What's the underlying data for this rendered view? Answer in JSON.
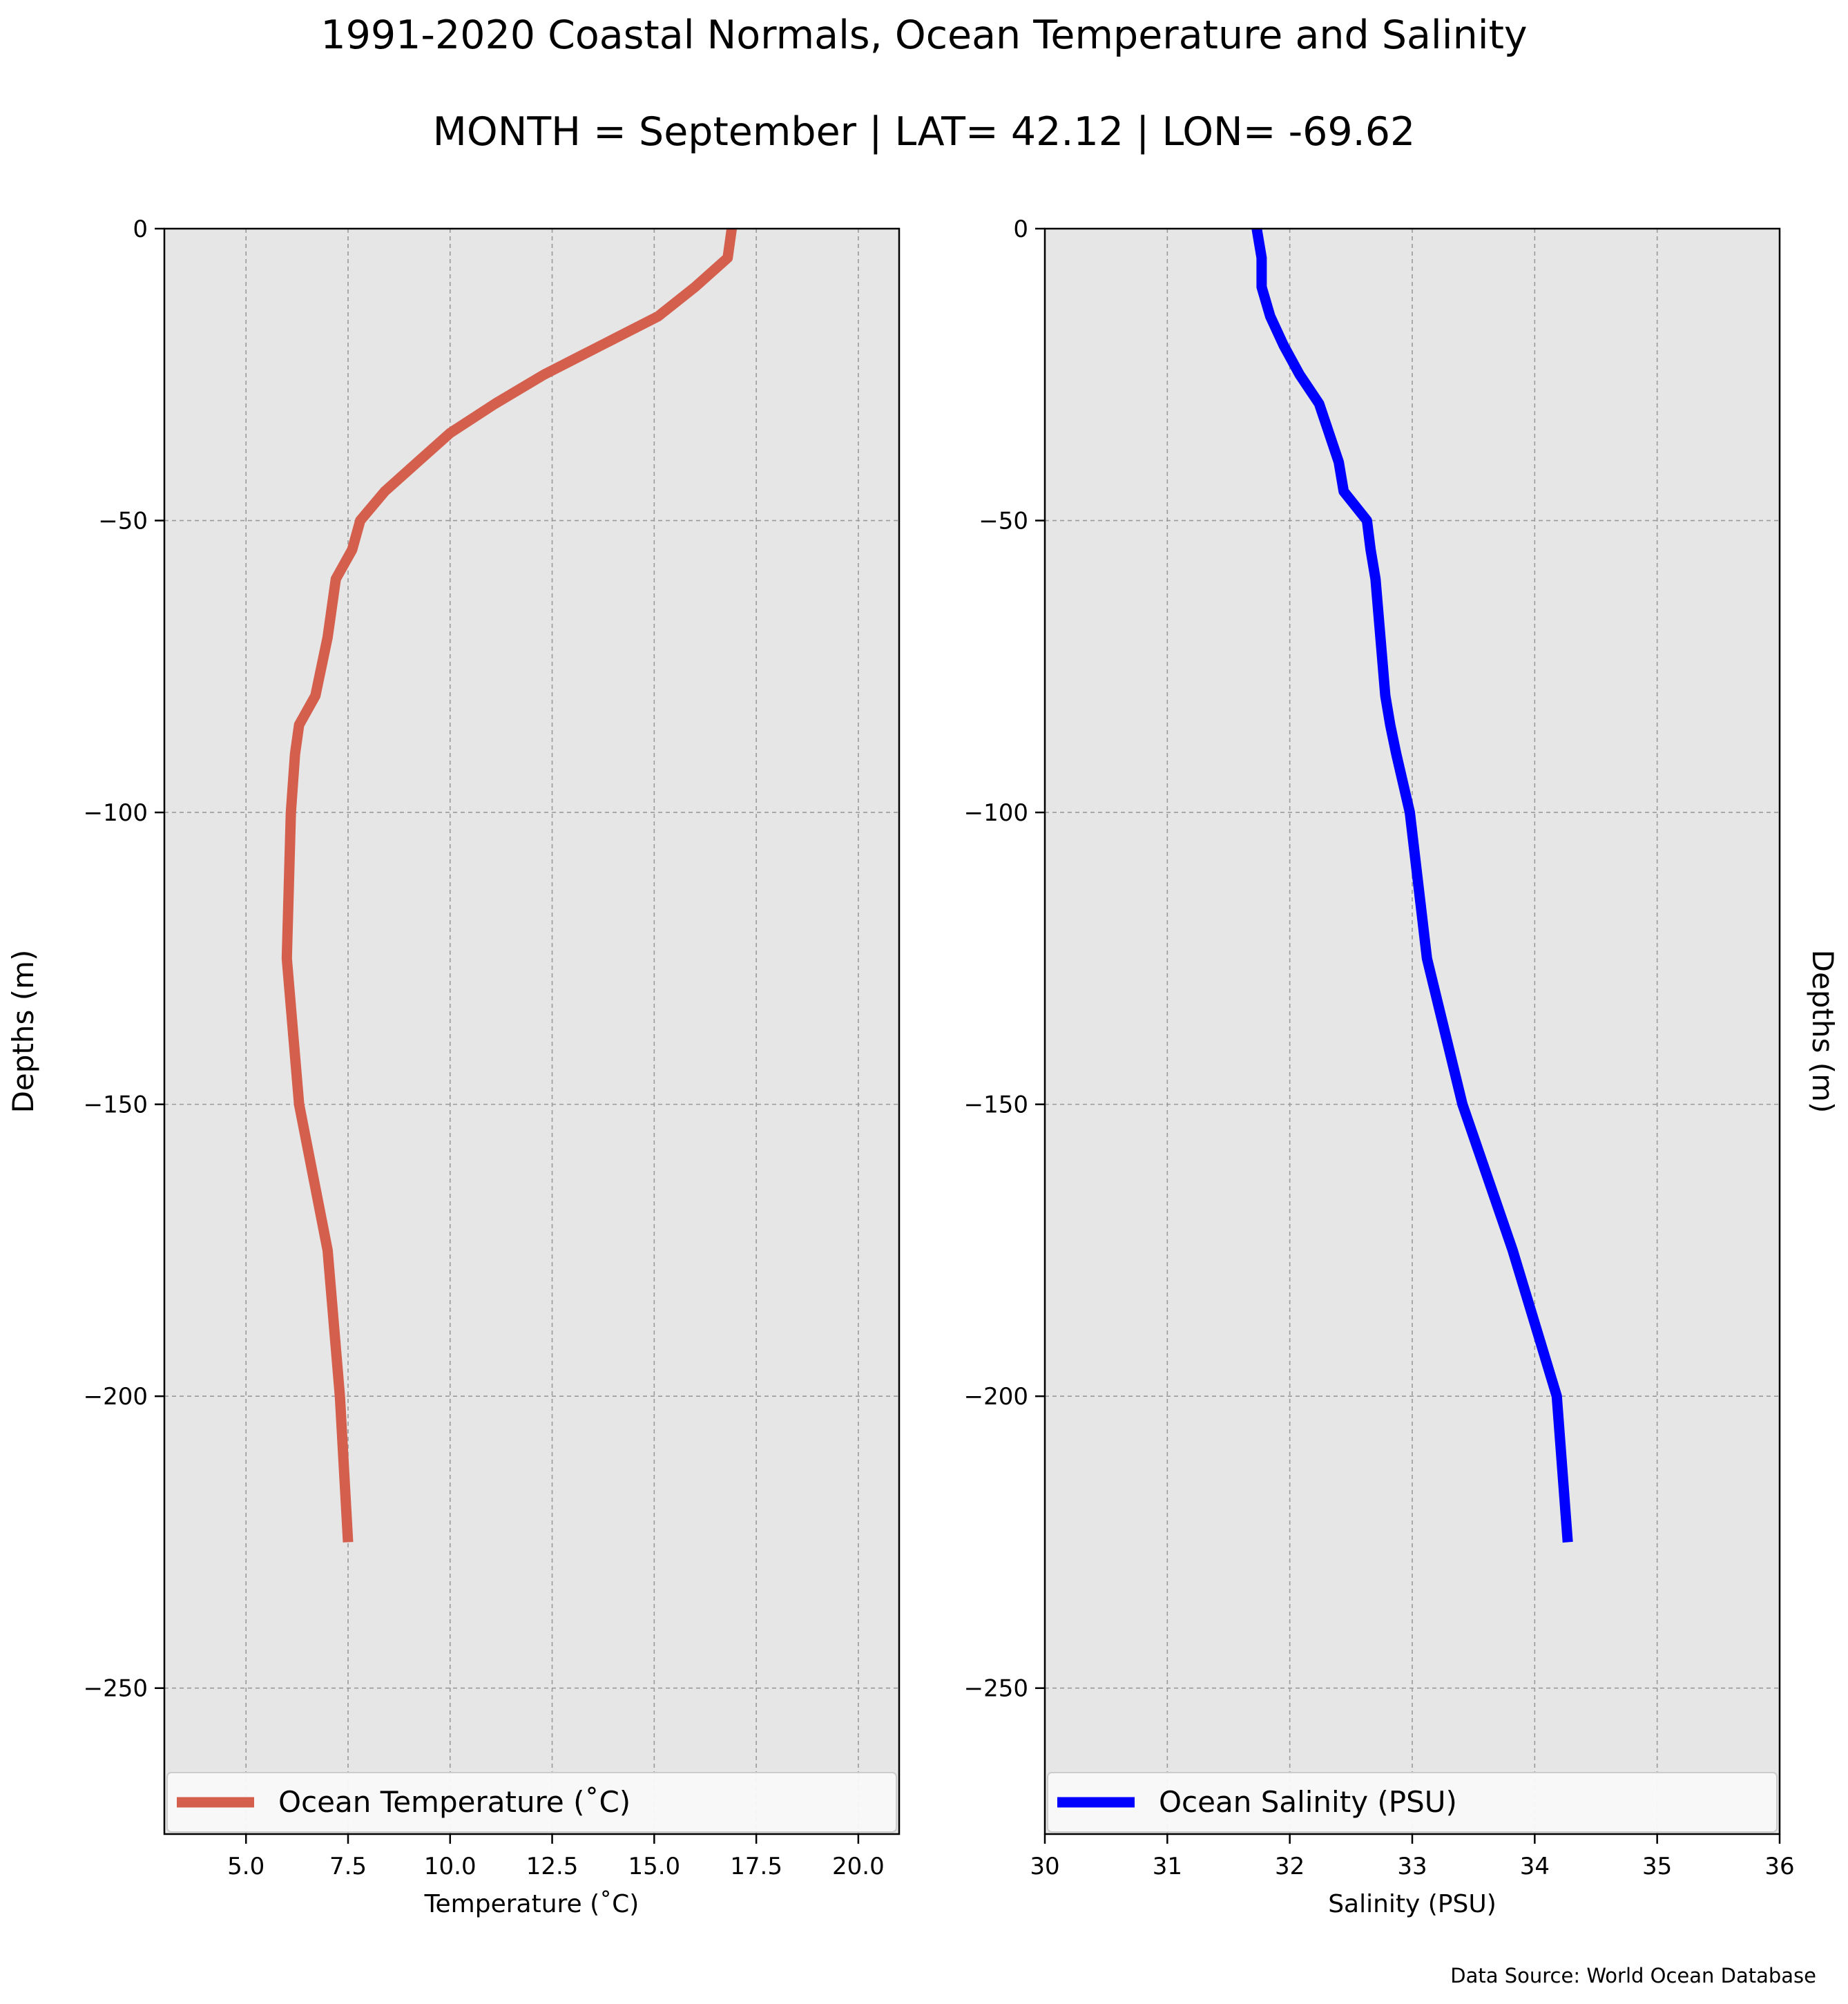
{
  "title_line1": "1991-2020 Coastal Normals, Ocean Temperature and Salinity",
  "title_line2": "MONTH = September | LAT= 42.12 | LON= -69.62",
  "source_note": "Data Source: World Ocean Database",
  "colors": {
    "temperature": "#d45f4d",
    "salinity": "#0000ff",
    "plot_bg": "#e6e6e6",
    "grid": "#9a9a9a"
  },
  "chart_data": [
    {
      "type": "line",
      "xlabel": "Temperature ($^\\circ$C)",
      "xlabel_display": "Temperature (˚C)",
      "ylabel": "Depths (m)",
      "xlim": [
        3.0,
        21.0
      ],
      "ylim": [
        -275,
        0
      ],
      "xticks": [
        5.0,
        7.5,
        10.0,
        12.5,
        15.0,
        17.5,
        20.0
      ],
      "xtick_labels": [
        "5.0",
        "7.5",
        "10.0",
        "12.5",
        "15.0",
        "17.5",
        "20.0"
      ],
      "yticks": [
        0,
        -50,
        -100,
        -150,
        -200,
        -250
      ],
      "ytick_labels": [
        "0",
        "−50",
        "−100",
        "−150",
        "−200",
        "−250"
      ],
      "grid": true,
      "legend": "bottom-spanning",
      "series": [
        {
          "name": "Ocean Temperature (˚C)",
          "x": [
            16.9,
            16.8,
            16.0,
            15.1,
            13.7,
            12.3,
            11.1,
            10.0,
            9.2,
            8.4,
            7.8,
            7.6,
            7.2,
            7.0,
            6.7,
            6.3,
            6.2,
            6.1,
            6.0,
            6.3,
            7.0,
            7.3,
            7.5
          ],
          "y": [
            0,
            -5,
            -10,
            -15,
            -20,
            -25,
            -30,
            -35,
            -40,
            -45,
            -50,
            -55,
            -60,
            -70,
            -80,
            -85,
            -90,
            -100,
            -125,
            -150,
            -175,
            -200,
            -225
          ]
        }
      ]
    },
    {
      "type": "line",
      "xlabel": "Salinity (PSU)",
      "ylabel": "Depths (m)",
      "xlim": [
        30,
        36
      ],
      "ylim": [
        -275,
        0
      ],
      "xticks": [
        30,
        31,
        32,
        33,
        34,
        35,
        36
      ],
      "xtick_labels": [
        "30",
        "31",
        "32",
        "33",
        "34",
        "35",
        "36"
      ],
      "yticks": [
        0,
        -50,
        -100,
        -150,
        -200,
        -250
      ],
      "ytick_labels": [
        "0",
        "−50",
        "−100",
        "−150",
        "−200",
        "−250"
      ],
      "grid": true,
      "legend": "bottom-spanning",
      "series": [
        {
          "name": "Ocean Salinity (PSU)",
          "x": [
            31.73,
            31.77,
            31.77,
            31.84,
            31.95,
            32.08,
            32.24,
            32.32,
            32.4,
            32.44,
            32.63,
            32.66,
            32.7,
            32.74,
            32.78,
            32.82,
            32.87,
            32.98,
            33.12,
            33.41,
            33.82,
            34.18,
            34.27
          ],
          "y": [
            0,
            -5,
            -10,
            -15,
            -20,
            -25,
            -30,
            -35,
            -40,
            -45,
            -50,
            -55,
            -60,
            -70,
            -80,
            -85,
            -90,
            -100,
            -125,
            -150,
            -175,
            -200,
            -225
          ]
        }
      ]
    }
  ]
}
